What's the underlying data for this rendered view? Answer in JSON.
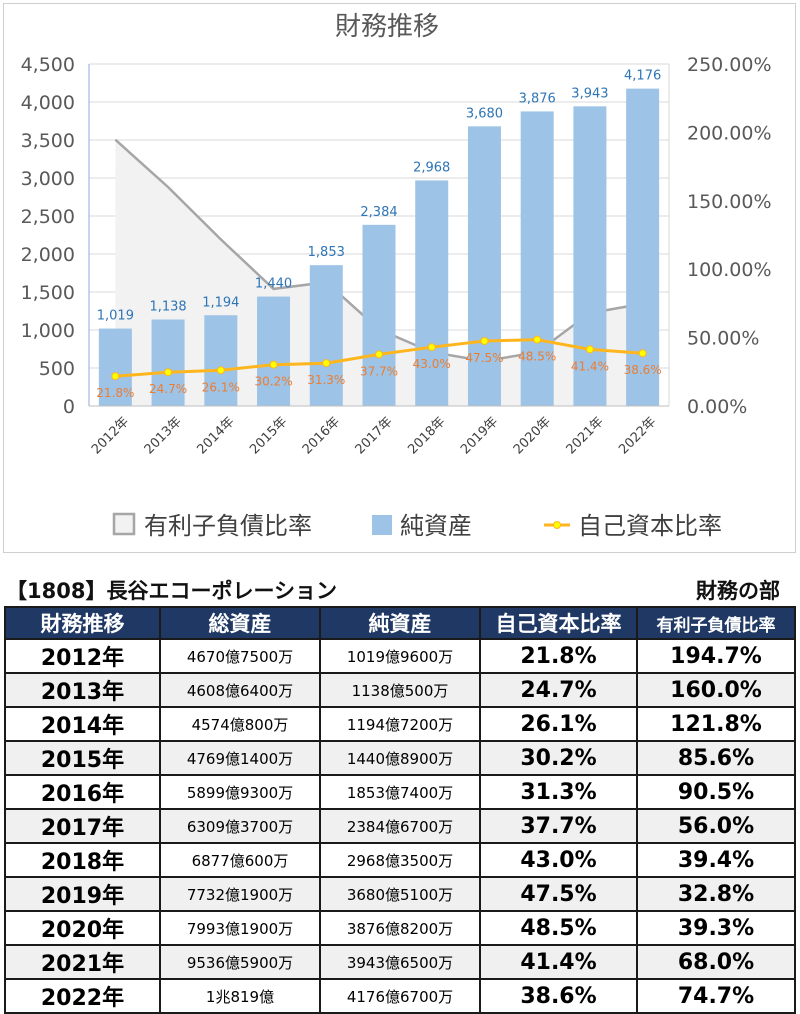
{
  "chart_data": {
    "type": "bar",
    "title": "財務推移",
    "categories": [
      "2012年",
      "2013年",
      "2014年",
      "2015年",
      "2016年",
      "2017年",
      "2018年",
      "2019年",
      "2020年",
      "2021年",
      "2022年"
    ],
    "series": [
      {
        "name": "有利子負債比率",
        "kind": "area",
        "axis": "right",
        "values": [
          194.7,
          160.0,
          121.8,
          85.6,
          90.5,
          56.0,
          39.4,
          32.8,
          39.3,
          68.0,
          74.7
        ]
      },
      {
        "name": "純資産",
        "kind": "bar",
        "axis": "left",
        "values": [
          1019,
          1138,
          1194,
          1440,
          1853,
          2384,
          2968,
          3680,
          3876,
          3943,
          4176
        ],
        "labels": [
          "1,019",
          "1,138",
          "1,194",
          "1,440",
          "1,853",
          "2,384",
          "2,968",
          "3,680",
          "3,876",
          "3,943",
          "4,176"
        ]
      },
      {
        "name": "自己資本比率",
        "kind": "line",
        "axis": "right",
        "values": [
          21.8,
          24.7,
          26.1,
          30.2,
          31.3,
          37.7,
          43.0,
          47.5,
          48.5,
          41.4,
          38.6
        ],
        "labels": [
          "21.8%",
          "24.7%",
          "26.1%",
          "30.2%",
          "31.3%",
          "37.7%",
          "43.0%",
          "47.5%",
          "48.5%",
          "41.4%",
          "38.6%"
        ]
      }
    ],
    "ylim": [
      0,
      4500
    ],
    "y_ticks": [
      "0",
      "500",
      "1,000",
      "1,500",
      "2,000",
      "2,500",
      "3,000",
      "3,500",
      "4,000",
      "4,500"
    ],
    "y2lim": [
      0,
      250
    ],
    "y2_ticks": [
      "0.00%",
      "50.00%",
      "100.00%",
      "150.00%",
      "200.00%",
      "250.00%"
    ],
    "grid": true,
    "legend_position": "bottom",
    "colors": {
      "area_fill": "#f2f2f2",
      "area_line": "#a6a6a6",
      "bar": "#9dc3e6",
      "line": "#ffb61e",
      "marker": "#ffff00",
      "bar_label": "#2e75b6",
      "line_label": "#ed7d31",
      "grid": "#d9d9d9"
    }
  },
  "table": {
    "title": "【1808】長谷エコーポレーション",
    "subtitle": "財務の部",
    "headers": [
      "財務推移",
      "総資産",
      "純資産",
      "自己資本比率",
      "有利子負債比率"
    ],
    "rows": [
      [
        "2012年",
        "4670億7500万",
        "1019億9600万",
        "21.8%",
        "194.7%"
      ],
      [
        "2013年",
        "4608億6400万",
        "1138億500万",
        "24.7%",
        "160.0%"
      ],
      [
        "2014年",
        "4574億800万",
        "1194億7200万",
        "26.1%",
        "121.8%"
      ],
      [
        "2015年",
        "4769億1400万",
        "1440億8900万",
        "30.2%",
        "85.6%"
      ],
      [
        "2016年",
        "5899億9300万",
        "1853億7400万",
        "31.3%",
        "90.5%"
      ],
      [
        "2017年",
        "6309億3700万",
        "2384億6700万",
        "37.7%",
        "56.0%"
      ],
      [
        "2018年",
        "6877億600万",
        "2968億3500万",
        "43.0%",
        "39.4%"
      ],
      [
        "2019年",
        "7732億1900万",
        "3680億5100万",
        "47.5%",
        "32.8%"
      ],
      [
        "2020年",
        "7993億1900万",
        "3876億8200万",
        "48.5%",
        "39.3%"
      ],
      [
        "2021年",
        "9536億5900万",
        "3943億6500万",
        "41.4%",
        "68.0%"
      ],
      [
        "2022年",
        "1兆819億",
        "4176億6700万",
        "38.6%",
        "74.7%"
      ]
    ],
    "colors": {
      "header_bg": "#1f3864",
      "header_text": "#ffffff",
      "alt_row": "#f0f0f0"
    }
  }
}
